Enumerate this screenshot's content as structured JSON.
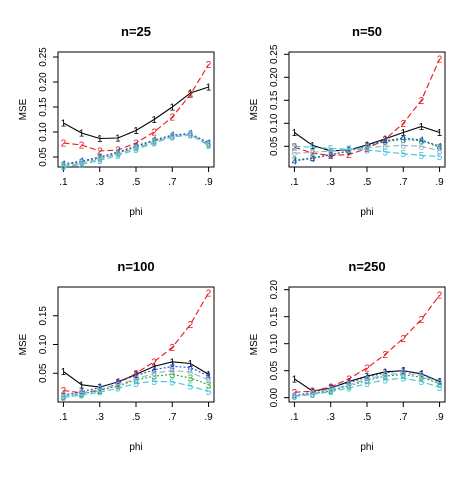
{
  "chart_data": [
    {
      "type": "line",
      "title": "n=25",
      "xlabel": "phi",
      "ylabel": "MSE",
      "x": [
        0.1,
        0.2,
        0.3,
        0.4,
        0.5,
        0.6,
        0.7,
        0.8,
        0.9
      ],
      "xticks": [
        ".1",
        ".3",
        ".5",
        ".7",
        ".9"
      ],
      "ylim": [
        0.03,
        0.26
      ],
      "yticks": [
        "0.05",
        "0.10",
        "0.15",
        "0.20",
        "0.25"
      ],
      "grid": false,
      "series": [
        {
          "marker": "1",
          "color": "#000000",
          "dash": "solid",
          "values": [
            0.118,
            0.098,
            0.087,
            0.088,
            0.103,
            0.125,
            0.15,
            0.178,
            0.19
          ]
        },
        {
          "marker": "2",
          "color": "#e8161b",
          "dash": "dashed",
          "values": [
            0.078,
            0.074,
            0.062,
            0.064,
            0.078,
            0.1,
            0.13,
            0.175,
            0.235
          ]
        },
        {
          "marker": "3",
          "color": "#33a02c",
          "dash": "dotted",
          "values": [
            0.034,
            0.04,
            0.048,
            0.058,
            0.07,
            0.082,
            0.092,
            0.096,
            0.077
          ]
        },
        {
          "marker": "4",
          "color": "#1f4fd8",
          "dash": "dotted",
          "values": [
            0.036,
            0.042,
            0.05,
            0.06,
            0.072,
            0.084,
            0.094,
            0.097,
            0.078
          ]
        },
        {
          "marker": "5",
          "color": "#39c5dc",
          "dash": "dashed",
          "values": [
            0.03,
            0.035,
            0.043,
            0.053,
            0.065,
            0.078,
            0.09,
            0.094,
            0.073
          ]
        },
        {
          "marker": "6",
          "color": "#8fb3c8",
          "dash": "dashed",
          "values": [
            0.032,
            0.038,
            0.046,
            0.056,
            0.068,
            0.08,
            0.091,
            0.095,
            0.075
          ]
        }
      ]
    },
    {
      "type": "line",
      "title": "n=50",
      "xlabel": "phi",
      "ylabel": "MSE",
      "x": [
        0.1,
        0.2,
        0.3,
        0.4,
        0.5,
        0.6,
        0.7,
        0.8,
        0.9
      ],
      "xticks": [
        ".1",
        ".3",
        ".5",
        ".7",
        ".9"
      ],
      "ylim": [
        0.005,
        0.255
      ],
      "yticks": [
        "0.05",
        "0.10",
        "0.15",
        "0.20",
        "0.25"
      ],
      "grid": false,
      "series": [
        {
          "marker": "1",
          "color": "#000000",
          "dash": "solid",
          "values": [
            0.08,
            0.052,
            0.04,
            0.042,
            0.053,
            0.066,
            0.08,
            0.093,
            0.08
          ]
        },
        {
          "marker": "2",
          "color": "#e8161b",
          "dash": "dashed",
          "values": [
            0.048,
            0.035,
            0.03,
            0.032,
            0.045,
            0.065,
            0.1,
            0.15,
            0.24
          ]
        },
        {
          "marker": "3",
          "color": "#33a02c",
          "dash": "dotted",
          "values": [
            0.02,
            0.025,
            0.032,
            0.04,
            0.05,
            0.06,
            0.065,
            0.062,
            0.048
          ]
        },
        {
          "marker": "4",
          "color": "#1f4fd8",
          "dash": "dotted",
          "values": [
            0.018,
            0.024,
            0.031,
            0.04,
            0.052,
            0.062,
            0.068,
            0.064,
            0.05
          ]
        },
        {
          "marker": "5",
          "color": "#39c5dc",
          "dash": "dashed",
          "values": [
            0.05,
            0.048,
            0.045,
            0.044,
            0.042,
            0.038,
            0.034,
            0.03,
            0.028
          ]
        },
        {
          "marker": "6",
          "color": "#8fb3c8",
          "dash": "dashed",
          "values": [
            0.035,
            0.037,
            0.04,
            0.043,
            0.047,
            0.05,
            0.052,
            0.05,
            0.04
          ]
        }
      ]
    },
    {
      "type": "line",
      "title": "n=100",
      "xlabel": "phi",
      "ylabel": "MSE",
      "x": [
        0.1,
        0.2,
        0.3,
        0.4,
        0.5,
        0.6,
        0.7,
        0.8,
        0.9
      ],
      "xticks": [
        ".1",
        ".3",
        ".5",
        ".7",
        ".9"
      ],
      "ylim": [
        0.0,
        0.2
      ],
      "yticks": [
        "0.05",
        "0.10",
        "0.15"
      ],
      "grid": false,
      "series": [
        {
          "marker": "1",
          "color": "#000000",
          "dash": "solid",
          "values": [
            0.053,
            0.03,
            0.026,
            0.035,
            0.048,
            0.062,
            0.07,
            0.067,
            0.048
          ]
        },
        {
          "marker": "2",
          "color": "#e8161b",
          "dash": "dashed",
          "values": [
            0.02,
            0.016,
            0.02,
            0.032,
            0.05,
            0.07,
            0.095,
            0.135,
            0.19
          ]
        },
        {
          "marker": "3",
          "color": "#33a02c",
          "dash": "dotted",
          "values": [
            0.01,
            0.014,
            0.02,
            0.028,
            0.038,
            0.045,
            0.048,
            0.042,
            0.03
          ]
        },
        {
          "marker": "4",
          "color": "#1f4fd8",
          "dash": "dotted",
          "values": [
            0.012,
            0.018,
            0.025,
            0.035,
            0.046,
            0.056,
            0.062,
            0.06,
            0.045
          ]
        },
        {
          "marker": "5",
          "color": "#39c5dc",
          "dash": "dashed",
          "values": [
            0.008,
            0.012,
            0.017,
            0.024,
            0.032,
            0.036,
            0.035,
            0.028,
            0.018
          ]
        },
        {
          "marker": "6",
          "color": "#8fb3c8",
          "dash": "dashed",
          "values": [
            0.011,
            0.016,
            0.022,
            0.03,
            0.04,
            0.05,
            0.055,
            0.052,
            0.038
          ]
        }
      ]
    },
    {
      "type": "line",
      "title": "n=250",
      "xlabel": "phi",
      "ylabel": "MSE",
      "x": [
        0.1,
        0.2,
        0.3,
        0.4,
        0.5,
        0.6,
        0.7,
        0.8,
        0.9
      ],
      "xticks": [
        ".1",
        ".3",
        ".5",
        ".7",
        ".9"
      ],
      "ylim": [
        -0.008,
        0.205
      ],
      "yticks": [
        "0.00",
        "0.05",
        "0.10",
        "0.15",
        "0.20"
      ],
      "grid": false,
      "series": [
        {
          "marker": "1",
          "color": "#000000",
          "dash": "solid",
          "values": [
            0.035,
            0.012,
            0.018,
            0.03,
            0.04,
            0.048,
            0.05,
            0.044,
            0.03
          ]
        },
        {
          "marker": "2",
          "color": "#e8161b",
          "dash": "dashed",
          "values": [
            0.01,
            0.012,
            0.02,
            0.035,
            0.055,
            0.08,
            0.11,
            0.145,
            0.19
          ]
        },
        {
          "marker": "3",
          "color": "#33a02c",
          "dash": "dotted",
          "values": [
            0.003,
            0.007,
            0.013,
            0.022,
            0.032,
            0.04,
            0.043,
            0.038,
            0.026
          ]
        },
        {
          "marker": "4",
          "color": "#1f4fd8",
          "dash": "dotted",
          "values": [
            0.004,
            0.01,
            0.018,
            0.028,
            0.038,
            0.046,
            0.05,
            0.045,
            0.03
          ]
        },
        {
          "marker": "5",
          "color": "#39c5dc",
          "dash": "dashed",
          "values": [
            0.002,
            0.006,
            0.011,
            0.018,
            0.026,
            0.033,
            0.036,
            0.03,
            0.019
          ]
        },
        {
          "marker": "6",
          "color": "#8fb3c8",
          "dash": "dashed",
          "values": [
            0.003,
            0.008,
            0.015,
            0.024,
            0.034,
            0.042,
            0.046,
            0.041,
            0.027
          ]
        }
      ]
    }
  ]
}
